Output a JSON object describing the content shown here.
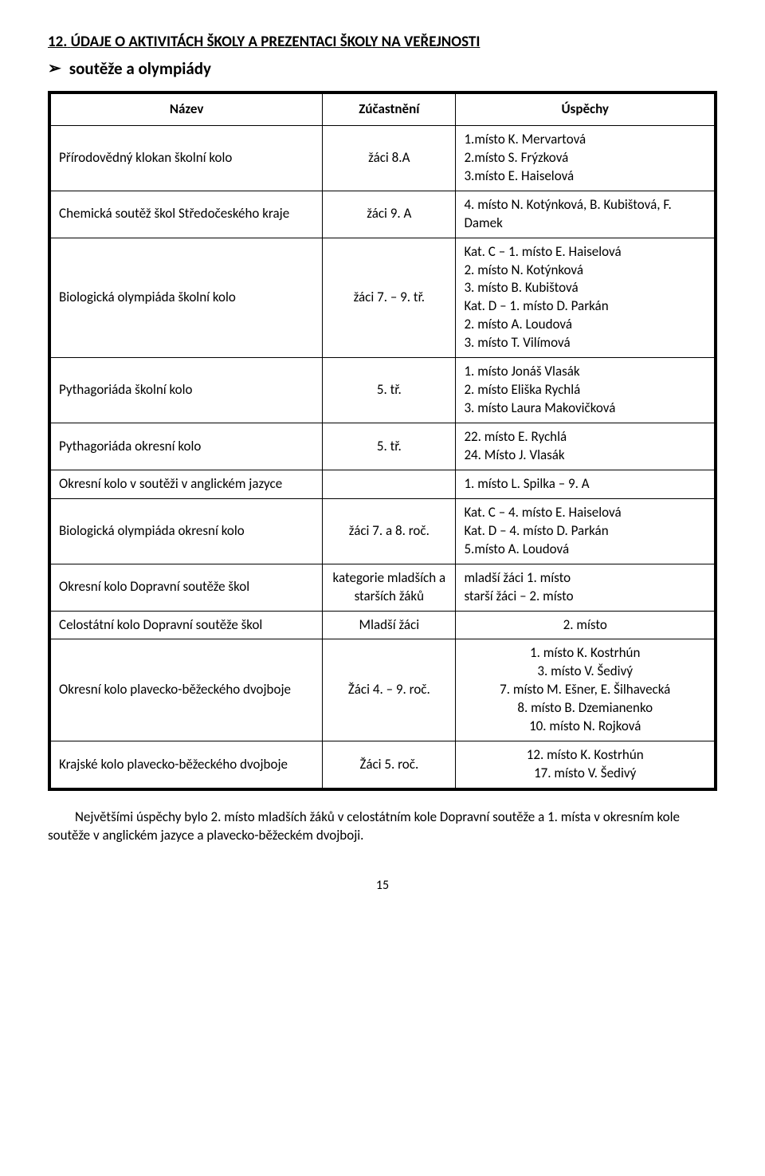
{
  "heading": {
    "number": "12.",
    "text": "ÚDAJE O AKTIVITÁCH ŠKOLY A PREZENTACI ŠKOLY NA VEŘEJNOSTI"
  },
  "subheading": "soutěže a olympiády",
  "columns": {
    "name": "Název",
    "participation": "Zúčastnění",
    "success": "Úspěchy"
  },
  "rows": [
    {
      "name": "Přírodovědný klokan školní kolo",
      "part": "žáci 8.A",
      "succ": "1.místo K. Mervartová\n2.místo S. Frýzková\n3.místo E. Haiselová"
    },
    {
      "name": "Chemická soutěž škol Středočeského kraje",
      "part": "žáci  9. A",
      "succ": "4. místo N. Kotýnková, B. Kubištová, F. Damek"
    },
    {
      "name": "Biologická olympiáda školní kolo",
      "part": "žáci 7. – 9. tř.",
      "succ": "Kat. C – 1. místo E. Haiselová\n2. místo N. Kotýnková\n3. místo B. Kubištová\nKat. D – 1. místo D. Parkán\n2. místo A. Loudová\n3. místo T. Vilímová"
    },
    {
      "name": "Pythagoriáda školní kolo",
      "part": "5. tř.",
      "succ": "1. místo Jonáš Vlasák\n2. místo Eliška Rychlá\n3. místo Laura Makovičková"
    },
    {
      "name": "Pythagoriáda okresní kolo",
      "part": "5. tř.",
      "succ": "22. místo E. Rychlá\n24. Místo J. Vlasák"
    },
    {
      "name": "Okresní kolo v soutěži v anglickém jazyce",
      "part": "",
      "succ": "1. místo L. Spilka – 9. A"
    },
    {
      "name": "Biologická olympiáda okresní kolo",
      "part": "žáci 7. a 8. roč.",
      "succ": "Kat. C – 4. místo E. Haiselová\nKat. D – 4. místo D. Parkán\n5.místo A. Loudová"
    },
    {
      "name": "Okresní kolo Dopravní soutěže škol",
      "part": "kategorie mladších a starších žáků",
      "succ": "mladší žáci 1. místo\nstarší žáci – 2. místo"
    },
    {
      "name": "Celostátní kolo Dopravní soutěže škol",
      "part": "Mladší žáci",
      "succ": "2. místo",
      "succ_center": true
    },
    {
      "name": "Okresní kolo plavecko-běžeckého dvojboje",
      "part": "Žáci 4. – 9. roč.",
      "succ": "1. místo K. Kostrhún\n3. místo V. Šedivý\n7. místo M. Ešner, E. Šilhavecká\n8. místo B. Dzemianenko\n10. místo N. Rojková",
      "succ_center": true
    },
    {
      "name": "Krajské kolo plavecko-běžeckého dvojboje",
      "part": "Žáci 5. roč.",
      "succ": "12. místo K. Kostrhún\n17. místo V. Šedivý",
      "succ_center": true
    }
  ],
  "aftertext": "Největšími úspěchy bylo 2. místo mladších žáků v celostátním kole Dopravní soutěže a 1. místa v okresním kole soutěže v anglickém jazyce a plavecko-běžeckém dvojboji.",
  "pagenum": "15"
}
